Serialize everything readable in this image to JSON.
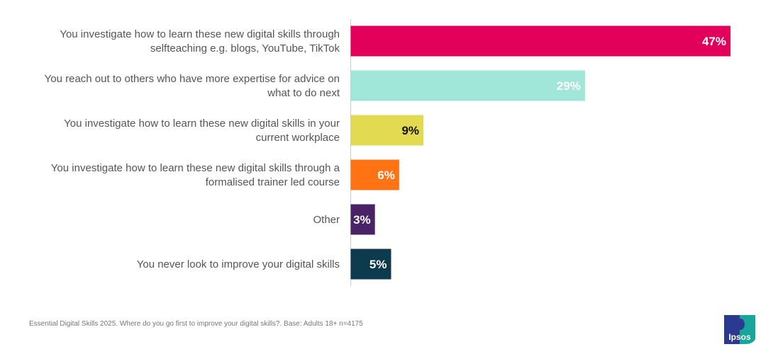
{
  "chart_data": {
    "type": "bar",
    "orientation": "horizontal",
    "categories": [
      [
        "You investigate how to learn these new digital skills through",
        "selfteaching e.g. blogs, YouTube, TikTok"
      ],
      [
        "You reach out to others who have more expertise for advice on",
        "what to do next"
      ],
      [
        "You investigate how to learn these new digital skills in your",
        "current workplace"
      ],
      [
        "You investigate how to learn these new digital skills through a",
        "formalised trainer led course"
      ],
      [
        "Other"
      ],
      [
        "You never look to improve your digital skills"
      ]
    ],
    "values": [
      47,
      29,
      9,
      6,
      3,
      5
    ],
    "data_labels": [
      "47%",
      "29%",
      "9%",
      "6%",
      "3%",
      "5%"
    ],
    "colors": [
      "#E3005A",
      "#A0E6D9",
      "#E2DA50",
      "#FF7315",
      "#4A2266",
      "#0E3A4E"
    ],
    "label_colors": [
      "#ffffff",
      "#ffffff",
      "#111111",
      "#ffffff",
      "#ffffff",
      "#ffffff"
    ],
    "xlim": [
      0,
      47
    ],
    "unit": "%",
    "grid": false,
    "legend": "none"
  },
  "footer": "Essential Digital Skills 2025. Where do you go first to improve your digital skills?. Base: Adults 18+ n=4175",
  "logo": "Ipsos"
}
